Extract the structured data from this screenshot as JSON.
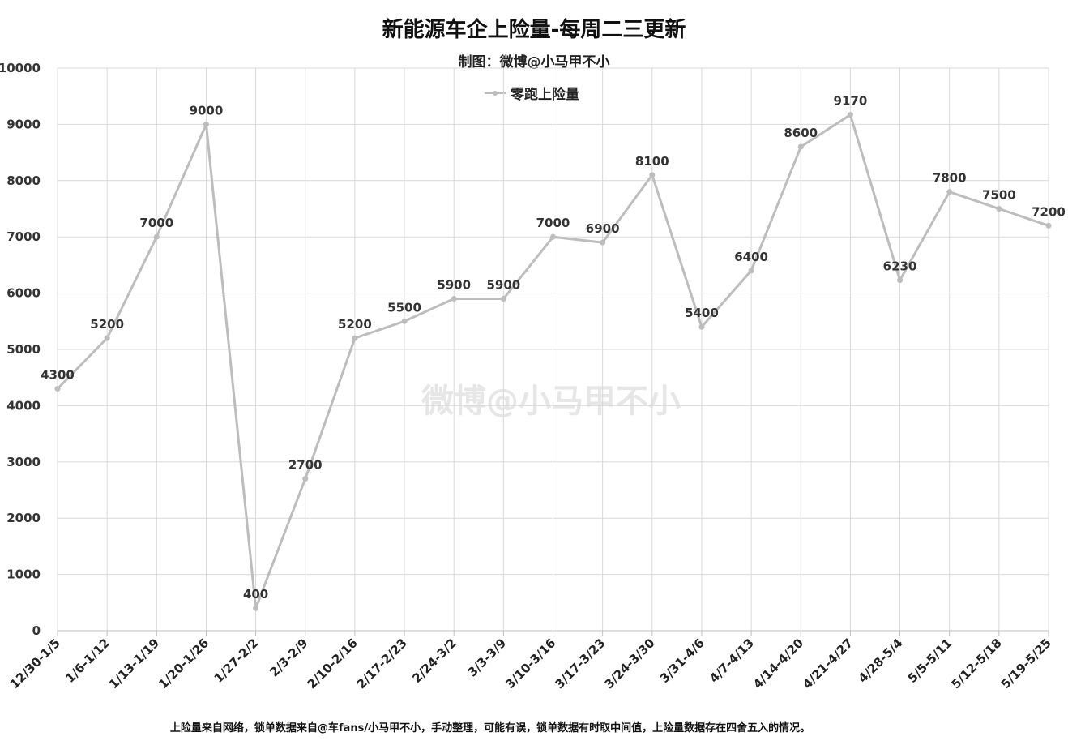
{
  "chart_data": {
    "type": "line",
    "title": "新能源车企上险量-每周二三更新",
    "subtitle": "制图：微博@小马甲不小",
    "categories": [
      "12/30-1/5",
      "1/6-1/12",
      "1/13-1/19",
      "1/20-1/26",
      "1/27-2/2",
      "2/3-2/9",
      "2/10-2/16",
      "2/17-2/23",
      "2/24-3/2",
      "3/3-3/9",
      "3/10-3/16",
      "3/17-3/23",
      "3/24-3/30",
      "3/31-4/6",
      "4/7-4/13",
      "4/14-4/20",
      "4/21-4/27",
      "4/28-5/4",
      "5/5-5/11",
      "5/12-5/18",
      "5/19-5/25"
    ],
    "series": [
      {
        "name": "零跑上险量",
        "color": "#bdbdbd",
        "values": [
          4300,
          5200,
          7000,
          9000,
          400,
          2700,
          5200,
          5500,
          5900,
          5900,
          7000,
          6900,
          8100,
          5400,
          6400,
          8600,
          9170,
          6230,
          7800,
          7500,
          7200
        ]
      }
    ],
    "yticks": [
      0,
      1000,
      2000,
      3000,
      4000,
      5000,
      6000,
      7000,
      8000,
      9000,
      10000
    ],
    "ylim": [
      0,
      10000
    ],
    "grid": true,
    "legend_position": "top-center",
    "footnote": "上险量来自网络，锁单数据来自@车fans/小马甲不小，手动整理，可能有误，锁单数据有时取中间值，上险量数据存在四舍五入的情况。",
    "watermark": "微博@小马甲不小"
  }
}
